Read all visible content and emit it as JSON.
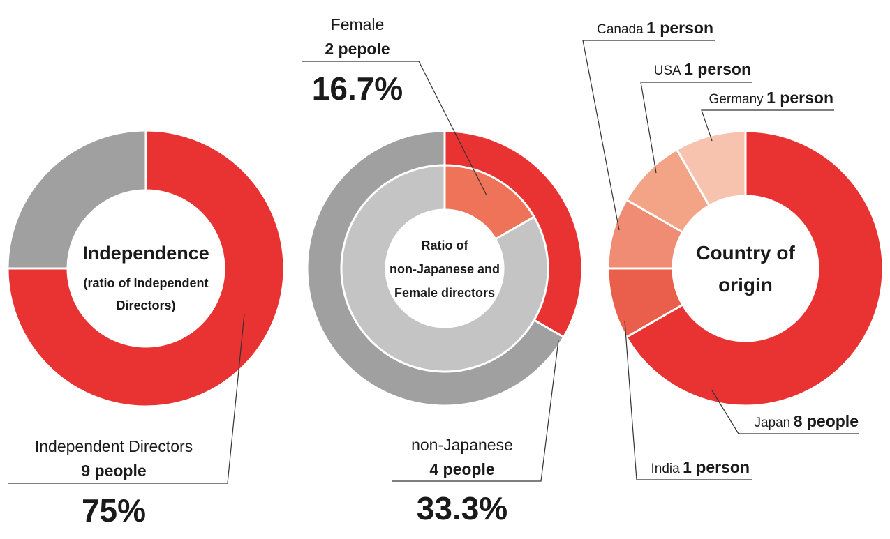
{
  "colors": {
    "red": "#e83332",
    "gray": "#a0a0a1",
    "light_gray": "#c4c4c5",
    "salmon": "#ee7359",
    "orange_red": "#e95f4b",
    "peach1": "#f08c74",
    "peach2": "#f3a386",
    "peach3": "#f7c3ae"
  },
  "chart_data": [
    {
      "type": "pie",
      "variant": "donut",
      "center_title": "Independence",
      "center_subtitle_1": "(ratio of Independent",
      "center_subtitle_2": "Directors)",
      "slices": [
        {
          "label": "Independent Directors",
          "count_label": "9 people",
          "percent_label": "75%",
          "value": 9,
          "color": "#e83332"
        },
        {
          "value": 3,
          "color": "#a0a0a1"
        }
      ]
    },
    {
      "type": "pie",
      "variant": "double-donut",
      "center_line_1": "Ratio of",
      "center_line_2": "non-Japanese and",
      "center_line_3": "Female directors",
      "outer": [
        {
          "label": "non-Japanese",
          "count_label": "4 people",
          "percent_label": "33.3%",
          "value": 4,
          "color": "#e83332"
        },
        {
          "value": 8,
          "color": "#a0a0a1"
        }
      ],
      "inner": [
        {
          "label": "Female",
          "count_label": "2 pepole",
          "percent_label": "16.7%",
          "value": 2,
          "color": "#ee7359"
        },
        {
          "value": 10,
          "color": "#c4c4c5"
        }
      ]
    },
    {
      "type": "pie",
      "variant": "donut",
      "center_line_1": "Country of",
      "center_line_2": "origin",
      "slices": [
        {
          "country": "Japan",
          "count_label": "8 people",
          "value": 8,
          "color": "#e83332"
        },
        {
          "country": "India",
          "count_label": "1 person",
          "value": 1,
          "color": "#e95f4b"
        },
        {
          "country": "Canada",
          "count_label": "1 person",
          "value": 1,
          "color": "#f08c74"
        },
        {
          "country": "USA",
          "count_label": "1 person",
          "value": 1,
          "color": "#f3a386"
        },
        {
          "country": "Germany",
          "count_label": "1 person",
          "value": 1,
          "color": "#f7c3ae"
        }
      ]
    }
  ]
}
